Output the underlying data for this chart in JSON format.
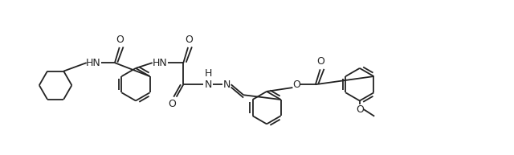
{
  "bg_color": "#ffffff",
  "line_color": "#222222",
  "line_width": 1.3,
  "fig_width": 6.4,
  "fig_height": 1.93,
  "dpi": 100,
  "xlim": [
    0,
    12.5
  ],
  "ylim": [
    -0.5,
    3.5
  ]
}
